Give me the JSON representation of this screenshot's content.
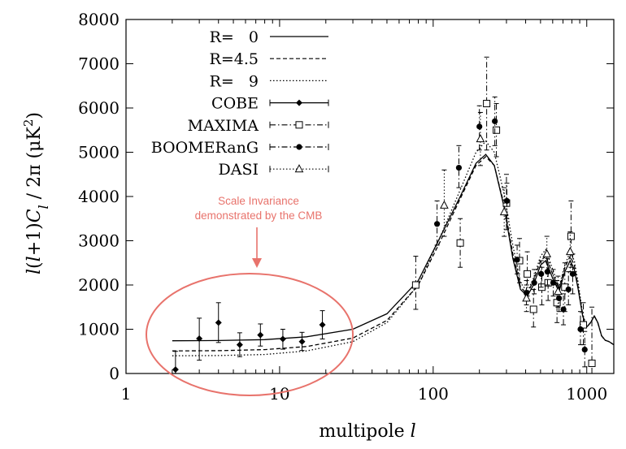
{
  "chart_data": {
    "type": "scatter",
    "x_scale": "log",
    "xlim": [
      1,
      1500
    ],
    "ylim": [
      0,
      8000
    ],
    "grid": false,
    "legend_position": "top-left",
    "xlabel_prefix": "multipole ",
    "xlabel_var": "l",
    "ylabel": "l(l+1)C_l / 2π (μK²)",
    "x_ticks": [
      {
        "value": 1,
        "label": "1"
      },
      {
        "value": 10,
        "label": "10"
      },
      {
        "value": 100,
        "label": "100"
      },
      {
        "value": 1000,
        "label": "1000"
      }
    ],
    "y_ticks": [
      {
        "value": 0,
        "label": "0"
      },
      {
        "value": 1000,
        "label": "1000"
      },
      {
        "value": 2000,
        "label": "2000"
      },
      {
        "value": 3000,
        "label": "3000"
      },
      {
        "value": 4000,
        "label": "4000"
      },
      {
        "value": 5000,
        "label": "5000"
      },
      {
        "value": 6000,
        "label": "6000"
      },
      {
        "value": 7000,
        "label": "7000"
      },
      {
        "value": 8000,
        "label": "8000"
      }
    ],
    "models": [
      {
        "name": "R=   0",
        "style": "solid",
        "points": [
          [
            2,
            740
          ],
          [
            4,
            745
          ],
          [
            8,
            765
          ],
          [
            15,
            830
          ],
          [
            30,
            1000
          ],
          [
            50,
            1350
          ],
          [
            80,
            2100
          ],
          [
            110,
            3050
          ],
          [
            150,
            4000
          ],
          [
            190,
            4750
          ],
          [
            220,
            4950
          ],
          [
            250,
            4700
          ],
          [
            290,
            3750
          ],
          [
            330,
            2600
          ],
          [
            370,
            1900
          ],
          [
            410,
            1750
          ],
          [
            450,
            2000
          ],
          [
            500,
            2450
          ],
          [
            540,
            2550
          ],
          [
            600,
            2150
          ],
          [
            660,
            1850
          ],
          [
            720,
            2300
          ],
          [
            780,
            2550
          ],
          [
            830,
            2350
          ],
          [
            880,
            1900
          ],
          [
            940,
            1300
          ],
          [
            1000,
            1050
          ],
          [
            1060,
            1150
          ],
          [
            1120,
            1300
          ],
          [
            1180,
            1150
          ],
          [
            1250,
            850
          ],
          [
            1320,
            750
          ],
          [
            1400,
            720
          ],
          [
            1500,
            650
          ]
        ]
      },
      {
        "name": "R=4.5",
        "style": "dashed",
        "points": [
          [
            2,
            510
          ],
          [
            4,
            515
          ],
          [
            8,
            540
          ],
          [
            15,
            610
          ],
          [
            30,
            800
          ],
          [
            50,
            1200
          ],
          [
            80,
            2000
          ],
          [
            110,
            2950
          ],
          [
            150,
            3950
          ],
          [
            190,
            4700
          ],
          [
            220,
            4900
          ],
          [
            250,
            4700
          ],
          [
            290,
            3800
          ],
          [
            330,
            2700
          ],
          [
            370,
            1950
          ],
          [
            410,
            1800
          ],
          [
            450,
            2100
          ],
          [
            500,
            2550
          ],
          [
            540,
            2650
          ],
          [
            600,
            2250
          ],
          [
            660,
            1900
          ],
          [
            720,
            2400
          ],
          [
            780,
            2650
          ],
          [
            830,
            2450
          ],
          [
            880,
            1950
          ],
          [
            940,
            1300
          ],
          [
            1000,
            1050
          ],
          [
            1060,
            1150
          ],
          [
            1120,
            1300
          ],
          [
            1180,
            1150
          ],
          [
            1250,
            850
          ],
          [
            1320,
            750
          ],
          [
            1400,
            720
          ],
          [
            1500,
            650
          ]
        ]
      },
      {
        "name": "R=   9",
        "style": "dotted",
        "points": [
          [
            2,
            400
          ],
          [
            4,
            405
          ],
          [
            8,
            430
          ],
          [
            15,
            510
          ],
          [
            30,
            720
          ],
          [
            50,
            1150
          ],
          [
            80,
            2000
          ],
          [
            110,
            3050
          ],
          [
            150,
            4150
          ],
          [
            190,
            5000
          ],
          [
            220,
            5250
          ],
          [
            250,
            5000
          ],
          [
            290,
            4050
          ],
          [
            330,
            2900
          ],
          [
            370,
            2050
          ],
          [
            410,
            1850
          ],
          [
            450,
            2150
          ],
          [
            500,
            2650
          ],
          [
            540,
            2800
          ],
          [
            600,
            2350
          ],
          [
            660,
            1950
          ],
          [
            720,
            2450
          ],
          [
            780,
            2750
          ],
          [
            830,
            2550
          ],
          [
            880,
            2050
          ],
          [
            940,
            1350
          ],
          [
            1000,
            1050
          ],
          [
            1060,
            1150
          ],
          [
            1120,
            1300
          ],
          [
            1180,
            1150
          ],
          [
            1250,
            850
          ],
          [
            1320,
            750
          ],
          [
            1400,
            720
          ],
          [
            1500,
            650
          ]
        ]
      }
    ],
    "datasets": [
      {
        "name": "COBE",
        "marker": "diamond",
        "line": "solid",
        "points": [
          [
            2.1,
            90,
            0,
            500
          ],
          [
            3,
            790,
            300,
            1250
          ],
          [
            4,
            1150,
            700,
            1600
          ],
          [
            5.5,
            650,
            380,
            920
          ],
          [
            7.5,
            870,
            620,
            1120
          ],
          [
            10.5,
            780,
            550,
            1000
          ],
          [
            14,
            720,
            520,
            930
          ],
          [
            19,
            1100,
            780,
            1420
          ]
        ]
      },
      {
        "name": "MAXIMA",
        "marker": "square",
        "line": "dashdot",
        "points": [
          [
            77,
            2000,
            1450,
            2650
          ],
          [
            150,
            2950,
            2400,
            3500
          ],
          [
            223,
            6100,
            5050,
            7150
          ],
          [
            258,
            5500,
            4900,
            6100
          ],
          [
            300,
            3850,
            3250,
            4500
          ],
          [
            365,
            2550,
            2050,
            3050
          ],
          [
            410,
            2250,
            1750,
            2750
          ],
          [
            450,
            1450,
            1050,
            1900
          ],
          [
            510,
            1950,
            1550,
            2400
          ],
          [
            560,
            2050,
            1650,
            2500
          ],
          [
            640,
            1600,
            1150,
            2100
          ],
          [
            720,
            1950,
            1400,
            2500
          ],
          [
            790,
            3100,
            2400,
            3900
          ],
          [
            950,
            1100,
            650,
            1600
          ],
          [
            1080,
            230,
            0,
            1500
          ]
        ]
      },
      {
        "name": "BOOMERanG",
        "marker": "circle",
        "line": "dashdot",
        "points": [
          [
            106,
            3380,
            2900,
            3900
          ],
          [
            147,
            4650,
            4200,
            5150
          ],
          [
            200,
            5580,
            5050,
            6050
          ],
          [
            252,
            5700,
            5150,
            6250
          ],
          [
            302,
            3900,
            3500,
            4300
          ],
          [
            352,
            2570,
            2250,
            2900
          ],
          [
            405,
            1820,
            1550,
            2100
          ],
          [
            455,
            2050,
            1800,
            2350
          ],
          [
            505,
            2250,
            1950,
            2550
          ],
          [
            555,
            2300,
            2000,
            2600
          ],
          [
            605,
            2050,
            1750,
            2350
          ],
          [
            660,
            1700,
            1400,
            2000
          ],
          [
            705,
            1450,
            1100,
            1800
          ],
          [
            760,
            1900,
            1550,
            2300
          ],
          [
            810,
            2250,
            1800,
            2700
          ],
          [
            910,
            1000,
            650,
            1400
          ],
          [
            970,
            540,
            150,
            950
          ]
        ]
      },
      {
        "name": "DASI",
        "marker": "triangle",
        "line": "dotted",
        "points": [
          [
            118,
            3800,
            3100,
            4600
          ],
          [
            203,
            5300,
            4700,
            5900
          ],
          [
            290,
            3650,
            3100,
            4200
          ],
          [
            405,
            1700,
            1400,
            2000
          ],
          [
            550,
            2700,
            2300,
            3100
          ],
          [
            650,
            1850,
            1500,
            2200
          ],
          [
            780,
            2750,
            2300,
            3200
          ]
        ]
      }
    ],
    "annotation": {
      "lines": [
        "Scale Invariance",
        "demonstrated by the CMB"
      ],
      "color": "#e8736c"
    }
  }
}
